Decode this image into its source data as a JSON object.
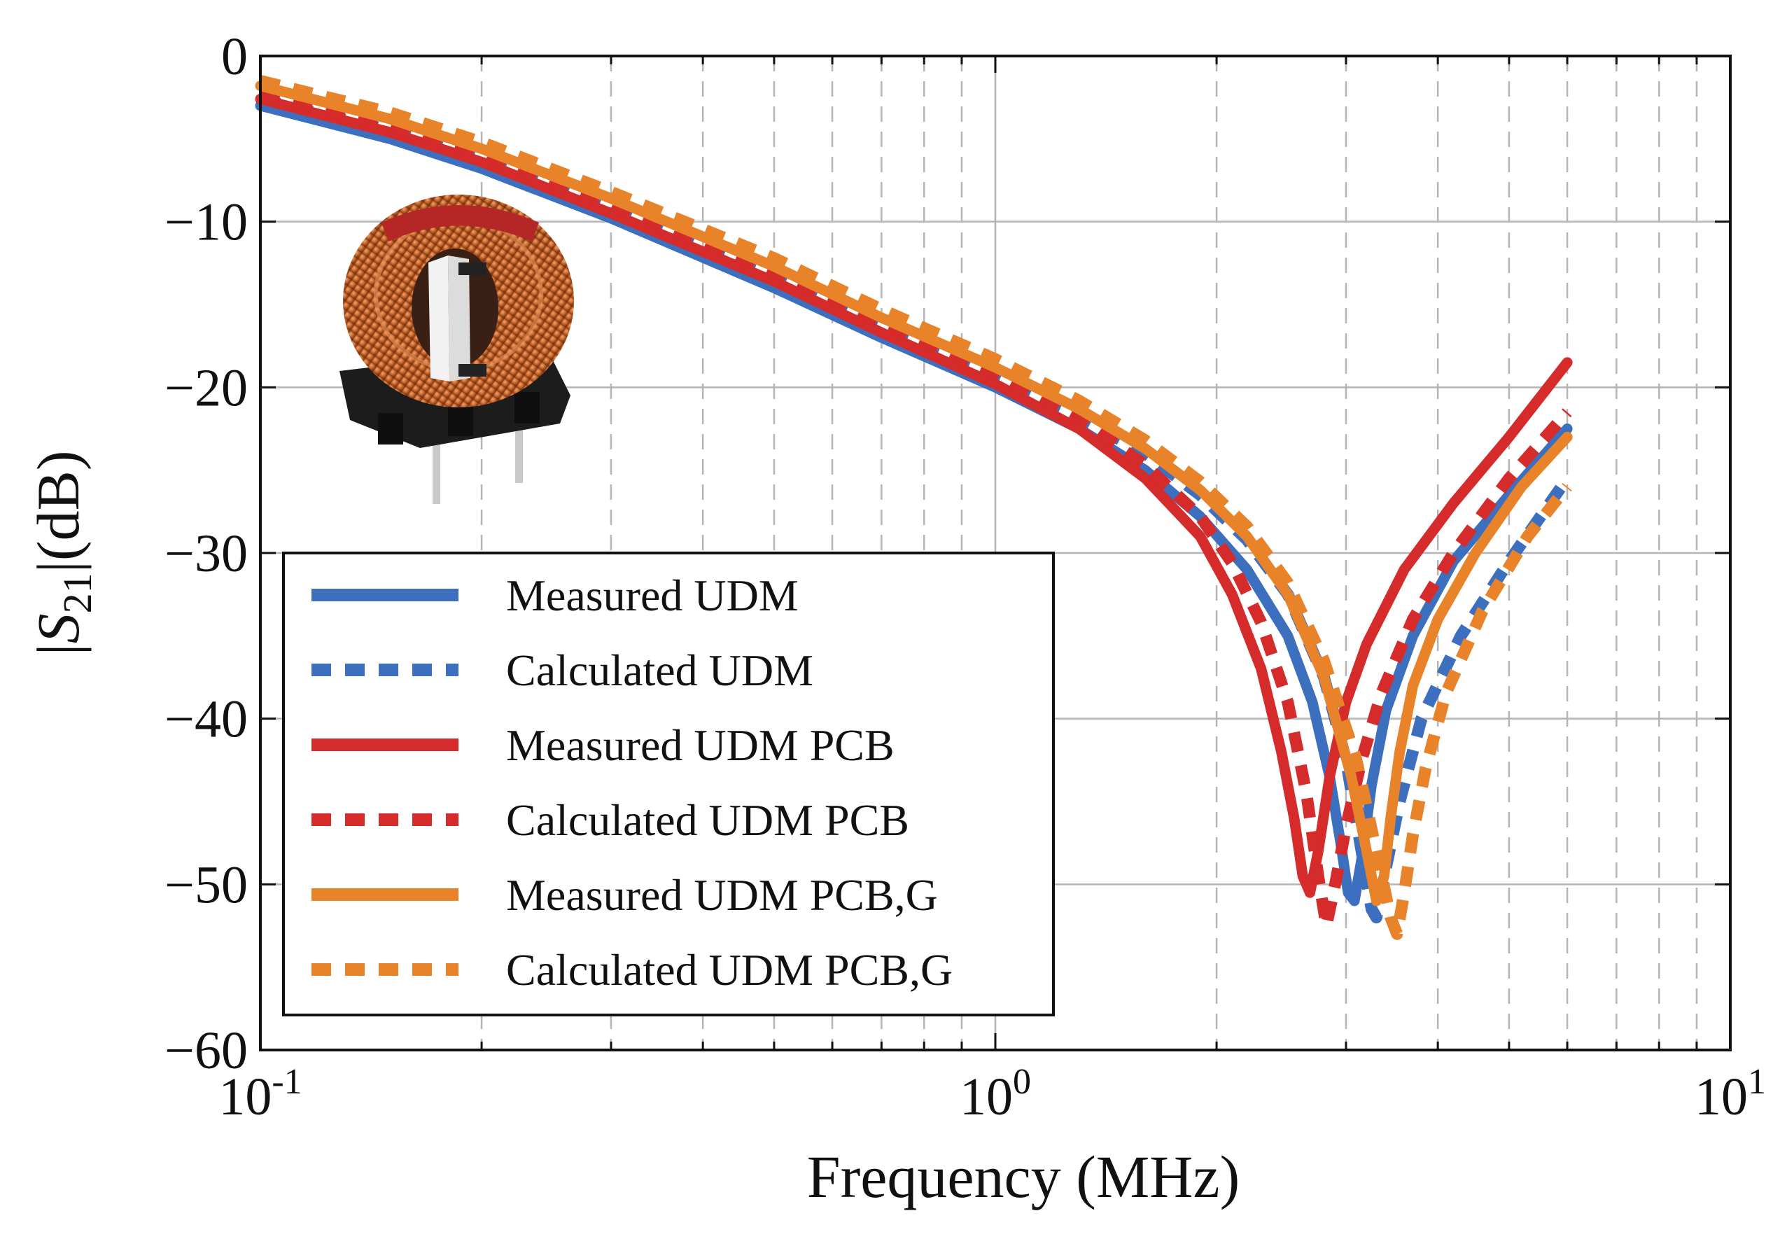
{
  "chart_data": {
    "type": "line",
    "title": "",
    "xlabel": "Frequency (MHz)",
    "ylabel": "|S21|(dB)",
    "xscale": "log",
    "xlim": [
      0.1,
      10
    ],
    "ylim": [
      -60,
      0
    ],
    "grid": true,
    "x_major_ticks": [
      {
        "value": 0.1,
        "base": "10",
        "exp": "-1"
      },
      {
        "value": 1,
        "base": "10",
        "exp": "0"
      },
      {
        "value": 10,
        "base": "10",
        "exp": "1"
      }
    ],
    "y_ticks": [
      {
        "value": 0,
        "label": "0"
      },
      {
        "value": -10,
        "label": "−10"
      },
      {
        "value": -20,
        "label": "−20"
      },
      {
        "value": -30,
        "label": "−30"
      },
      {
        "value": -40,
        "label": "−40"
      },
      {
        "value": -50,
        "label": "−50"
      },
      {
        "value": -60,
        "label": "−60"
      }
    ],
    "legend_position": "lower-left",
    "series": [
      {
        "name": "Measured UDM",
        "color": "#3d6fbf",
        "style": "solid",
        "x": [
          0.1,
          0.15,
          0.2,
          0.3,
          0.5,
          0.7,
          1.0,
          1.3,
          1.6,
          1.9,
          2.2,
          2.5,
          2.7,
          2.85,
          2.95,
          3.02,
          3.08,
          3.15,
          3.25,
          3.4,
          3.7,
          4.2,
          5.0,
          6.0
        ],
        "y": [
          -3.0,
          -5.0,
          -6.8,
          -9.8,
          -14.0,
          -17.0,
          -20.0,
          -22.5,
          -25.0,
          -27.8,
          -31.0,
          -35.0,
          -39.0,
          -43.5,
          -47.5,
          -50.5,
          -51.0,
          -48.5,
          -44.0,
          -39.5,
          -35.0,
          -30.5,
          -26.5,
          -22.5
        ]
      },
      {
        "name": "Calculated UDM",
        "color": "#3d6fbf",
        "style": "dashed",
        "x": [
          0.1,
          0.15,
          0.2,
          0.3,
          0.5,
          0.7,
          1.0,
          1.3,
          1.6,
          1.9,
          2.2,
          2.5,
          2.8,
          3.0,
          3.15,
          3.25,
          3.3,
          3.4,
          3.55,
          3.8,
          4.3,
          5.0,
          6.0
        ],
        "y": [
          -2.6,
          -4.5,
          -6.3,
          -9.3,
          -13.4,
          -16.4,
          -19.4,
          -21.8,
          -24.0,
          -26.5,
          -29.2,
          -32.5,
          -37.5,
          -42.5,
          -48.0,
          -51.5,
          -52.0,
          -49.0,
          -45.0,
          -40.0,
          -35.0,
          -30.5,
          -25.5
        ]
      },
      {
        "name": "Measured UDM PCB",
        "color": "#d62b2b",
        "style": "solid",
        "x": [
          0.1,
          0.15,
          0.2,
          0.3,
          0.5,
          0.7,
          1.0,
          1.3,
          1.6,
          1.9,
          2.1,
          2.3,
          2.45,
          2.55,
          2.62,
          2.68,
          2.75,
          2.85,
          3.0,
          3.2,
          3.6,
          4.2,
          5.0,
          6.0
        ],
        "y": [
          -2.6,
          -4.6,
          -6.4,
          -9.5,
          -13.6,
          -16.7,
          -19.8,
          -22.5,
          -25.5,
          -29.0,
          -32.5,
          -37.0,
          -42.0,
          -46.0,
          -49.5,
          -50.5,
          -48.0,
          -43.5,
          -39.0,
          -35.5,
          -31.0,
          -27.0,
          -23.0,
          -18.5
        ]
      },
      {
        "name": "Calculated UDM PCB",
        "color": "#d62b2b",
        "style": "dashed",
        "x": [
          0.1,
          0.15,
          0.2,
          0.3,
          0.5,
          0.7,
          1.0,
          1.3,
          1.6,
          1.9,
          2.1,
          2.3,
          2.5,
          2.65,
          2.75,
          2.82,
          2.9,
          3.0,
          3.15,
          3.35,
          3.7,
          4.2,
          5.0,
          6.0
        ],
        "y": [
          -2.3,
          -4.2,
          -6.0,
          -9.0,
          -13.0,
          -16.1,
          -19.2,
          -21.9,
          -24.7,
          -27.8,
          -30.6,
          -34.2,
          -39.0,
          -44.5,
          -49.5,
          -52.5,
          -50.0,
          -46.5,
          -42.5,
          -38.5,
          -34.0,
          -30.0,
          -25.5,
          -21.5
        ]
      },
      {
        "name": "Measured UDM PCB,G",
        "color": "#e8832a",
        "style": "solid",
        "x": [
          0.1,
          0.15,
          0.2,
          0.3,
          0.5,
          0.7,
          1.0,
          1.3,
          1.6,
          1.9,
          2.2,
          2.5,
          2.8,
          3.05,
          3.2,
          3.3,
          3.38,
          3.45,
          3.55,
          3.7,
          4.0,
          4.5,
          5.2,
          6.0
        ],
        "y": [
          -1.8,
          -3.8,
          -5.6,
          -8.6,
          -12.7,
          -15.8,
          -18.8,
          -21.3,
          -23.7,
          -26.2,
          -29.0,
          -32.5,
          -37.5,
          -43.5,
          -48.0,
          -51.0,
          -49.5,
          -46.0,
          -42.0,
          -38.0,
          -34.0,
          -30.0,
          -26.0,
          -23.0
        ]
      },
      {
        "name": "Calculated UDM PCB,G",
        "color": "#e8832a",
        "style": "dashed",
        "x": [
          0.1,
          0.15,
          0.2,
          0.3,
          0.5,
          0.7,
          1.0,
          1.3,
          1.6,
          1.9,
          2.2,
          2.5,
          2.8,
          3.1,
          3.3,
          3.45,
          3.52,
          3.6,
          3.7,
          3.85,
          4.1,
          4.6,
          5.3,
          6.0
        ],
        "y": [
          -1.5,
          -3.4,
          -5.2,
          -8.2,
          -12.2,
          -15.3,
          -18.3,
          -20.8,
          -23.2,
          -25.7,
          -28.4,
          -31.8,
          -36.5,
          -42.5,
          -48.0,
          -52.0,
          -53.0,
          -50.5,
          -47.0,
          -43.0,
          -38.5,
          -33.5,
          -29.0,
          -26.0
        ]
      }
    ]
  }
}
